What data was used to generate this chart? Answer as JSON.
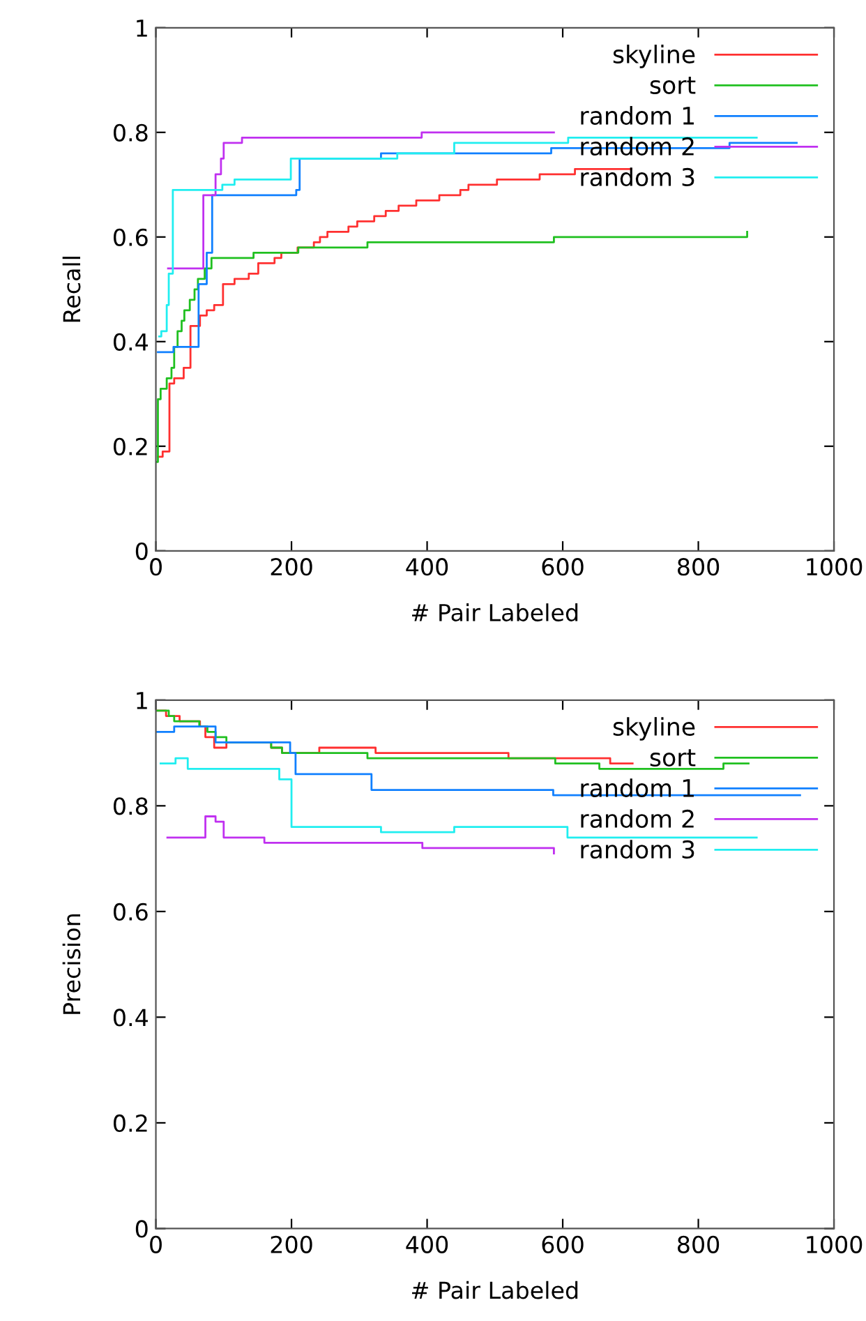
{
  "chart_data": [
    {
      "type": "step",
      "xlabel": "# Pair Labeled",
      "ylabel": "Recall",
      "xlim": [
        0,
        1000
      ],
      "ylim": [
        0,
        1
      ],
      "xticks": [
        0,
        200,
        400,
        600,
        800,
        1000
      ],
      "yticks": [
        0,
        0.2,
        0.4,
        0.6,
        0.8,
        1
      ],
      "grid": false,
      "legend": "top right",
      "series": [
        {
          "name": "skyline",
          "color": "#ff3030",
          "x": [
            3,
            10,
            20,
            27,
            41,
            51,
            65,
            75,
            86,
            99,
            116,
            137,
            151,
            175,
            185,
            209,
            233,
            242,
            253,
            284,
            297,
            322,
            339,
            358,
            384,
            418,
            449,
            461,
            503,
            566,
            618,
            701
          ],
          "values": [
            0.18,
            0.19,
            0.32,
            0.33,
            0.35,
            0.43,
            0.45,
            0.46,
            0.47,
            0.51,
            0.52,
            0.53,
            0.55,
            0.56,
            0.57,
            0.58,
            0.59,
            0.6,
            0.61,
            0.62,
            0.63,
            0.64,
            0.65,
            0.66,
            0.67,
            0.68,
            0.69,
            0.7,
            0.71,
            0.72,
            0.73,
            0.73
          ]
        },
        {
          "name": "sort",
          "color": "#20c020",
          "x": [
            1,
            3,
            7,
            16,
            23,
            27,
            32,
            38,
            42,
            50,
            57,
            62,
            72,
            82,
            144,
            210,
            312,
            587,
            872
          ],
          "values": [
            0.17,
            0.29,
            0.31,
            0.33,
            0.35,
            0.39,
            0.42,
            0.44,
            0.46,
            0.48,
            0.5,
            0.52,
            0.54,
            0.56,
            0.57,
            0.58,
            0.59,
            0.6,
            0.61
          ]
        },
        {
          "name": "random 1",
          "color": "#1080ff",
          "x": [
            3,
            26,
            63,
            75,
            83,
            207,
            212,
            332,
            583,
            846,
            945
          ],
          "values": [
            0.38,
            0.39,
            0.51,
            0.57,
            0.68,
            0.69,
            0.75,
            0.76,
            0.77,
            0.78,
            0.78
          ]
        },
        {
          "name": "random 2",
          "color": "#c030f0",
          "x": [
            18,
            70,
            88,
            96,
            100,
            127,
            392,
            587
          ],
          "values": [
            0.54,
            0.68,
            0.72,
            0.75,
            0.78,
            0.79,
            0.8,
            0.8
          ]
        },
        {
          "name": "random 3",
          "color": "#20eef0",
          "x": [
            5,
            8,
            16,
            19,
            25,
            98,
            116,
            199,
            356,
            440,
            608,
            886
          ],
          "values": [
            0.41,
            0.42,
            0.47,
            0.53,
            0.69,
            0.7,
            0.71,
            0.75,
            0.76,
            0.78,
            0.79,
            0.79
          ]
        }
      ]
    },
    {
      "type": "step",
      "xlabel": "# Pair Labeled",
      "ylabel": "Precision",
      "xlim": [
        0,
        1000
      ],
      "ylim": [
        0,
        1
      ],
      "xticks": [
        0,
        200,
        400,
        600,
        800,
        1000
      ],
      "yticks": [
        0,
        0.2,
        0.4,
        0.6,
        0.8,
        1
      ],
      "grid": false,
      "legend": "top right",
      "series": [
        {
          "name": "skyline",
          "color": "#ff3030",
          "x": [
            2,
            15,
            35,
            65,
            73,
            86,
            104,
            170,
            186,
            241,
            324,
            520,
            670,
            703
          ],
          "values": [
            0.98,
            0.97,
            0.96,
            0.95,
            0.93,
            0.91,
            0.92,
            0.91,
            0.9,
            0.91,
            0.9,
            0.89,
            0.88,
            0.88
          ]
        },
        {
          "name": "sort",
          "color": "#20c020",
          "x": [
            2,
            19,
            27,
            64,
            76,
            88,
            104,
            170,
            186,
            312,
            589,
            654,
            837,
            874
          ],
          "values": [
            0.98,
            0.97,
            0.96,
            0.95,
            0.94,
            0.93,
            0.92,
            0.91,
            0.9,
            0.89,
            0.88,
            0.87,
            0.88,
            0.88
          ]
        },
        {
          "name": "random 1",
          "color": "#1080ff",
          "x": [
            2,
            27,
            88,
            198,
            206,
            318,
            586,
            950
          ],
          "values": [
            0.94,
            0.95,
            0.92,
            0.9,
            0.86,
            0.83,
            0.82,
            0.82
          ]
        },
        {
          "name": "random 2",
          "color": "#c030f0",
          "x": [
            17,
            73,
            88,
            100,
            160,
            393,
            586,
            587
          ],
          "values": [
            0.74,
            0.78,
            0.77,
            0.74,
            0.73,
            0.72,
            0.72,
            0.71
          ]
        },
        {
          "name": "random 3",
          "color": "#20eef0",
          "x": [
            7,
            29,
            47,
            182,
            200,
            332,
            440,
            607,
            886
          ],
          "values": [
            0.88,
            0.89,
            0.87,
            0.85,
            0.76,
            0.75,
            0.76,
            0.74,
            0.74
          ]
        }
      ]
    }
  ]
}
